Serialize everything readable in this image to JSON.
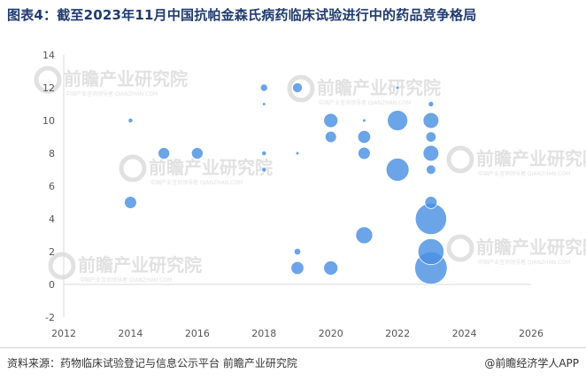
{
  "title": "图表4：截至2023年11月中国抗帕金森氏病药临床试验进行中的药品竞争格局",
  "footer": {
    "source": "资料来源：药物临床试验登记与信息公示平台 前瞻产业研究院",
    "brand": "@前瞻经济学人APP"
  },
  "watermark": {
    "text": "前瞻产业研究院",
    "subtext": "中国产业咨询领导者 QIANZHAN.COM",
    "color": "#c9c9c9"
  },
  "chart_data": {
    "type": "scatter",
    "title": "",
    "xlabel": "",
    "ylabel": "",
    "xlim": [
      2012,
      2026
    ],
    "ylim": [
      -2,
      14
    ],
    "xticks": [
      2012,
      2014,
      2016,
      2018,
      2020,
      2022,
      2024,
      2026
    ],
    "yticks": [
      -2,
      0,
      2,
      4,
      6,
      8,
      10,
      12,
      14
    ],
    "grid": false,
    "bubble_color": "#4a90e2",
    "points": [
      {
        "x": 2014,
        "y": 10,
        "size": 0.3
      },
      {
        "x": 2014,
        "y": 5,
        "size": 2
      },
      {
        "x": 2015,
        "y": 8,
        "size": 1.8
      },
      {
        "x": 2016,
        "y": 8,
        "size": 1.8
      },
      {
        "x": 2018,
        "y": 12,
        "size": 0.7
      },
      {
        "x": 2018,
        "y": 11,
        "size": 0.15
      },
      {
        "x": 2018,
        "y": 8,
        "size": 0.3
      },
      {
        "x": 2018,
        "y": 7,
        "size": 0.3
      },
      {
        "x": 2019,
        "y": 12,
        "size": 1.3
      },
      {
        "x": 2019,
        "y": 8,
        "size": 0.15
      },
      {
        "x": 2019,
        "y": 2,
        "size": 0.6
      },
      {
        "x": 2019,
        "y": 1,
        "size": 2.2
      },
      {
        "x": 2020,
        "y": 10,
        "size": 2.7
      },
      {
        "x": 2020,
        "y": 9,
        "size": 1.7
      },
      {
        "x": 2020,
        "y": 1,
        "size": 2.7
      },
      {
        "x": 2021,
        "y": 10,
        "size": 0.15
      },
      {
        "x": 2021,
        "y": 9,
        "size": 2.2
      },
      {
        "x": 2021,
        "y": 8,
        "size": 2
      },
      {
        "x": 2021,
        "y": 3,
        "size": 3.8
      },
      {
        "x": 2022,
        "y": 12,
        "size": 0.15
      },
      {
        "x": 2022,
        "y": 10,
        "size": 5.5
      },
      {
        "x": 2022,
        "y": 7,
        "size": 7
      },
      {
        "x": 2023,
        "y": 11,
        "size": 0.4
      },
      {
        "x": 2023,
        "y": 10,
        "size": 3.3
      },
      {
        "x": 2023,
        "y": 9,
        "size": 1.4
      },
      {
        "x": 2023,
        "y": 8,
        "size": 3.3
      },
      {
        "x": 2023,
        "y": 7,
        "size": 1.2
      },
      {
        "x": 2023,
        "y": 5,
        "size": 2
      },
      {
        "x": 2023,
        "y": 4,
        "size": 13
      },
      {
        "x": 2023,
        "y": 2,
        "size": 9
      },
      {
        "x": 2023,
        "y": 1,
        "size": 14
      }
    ]
  }
}
